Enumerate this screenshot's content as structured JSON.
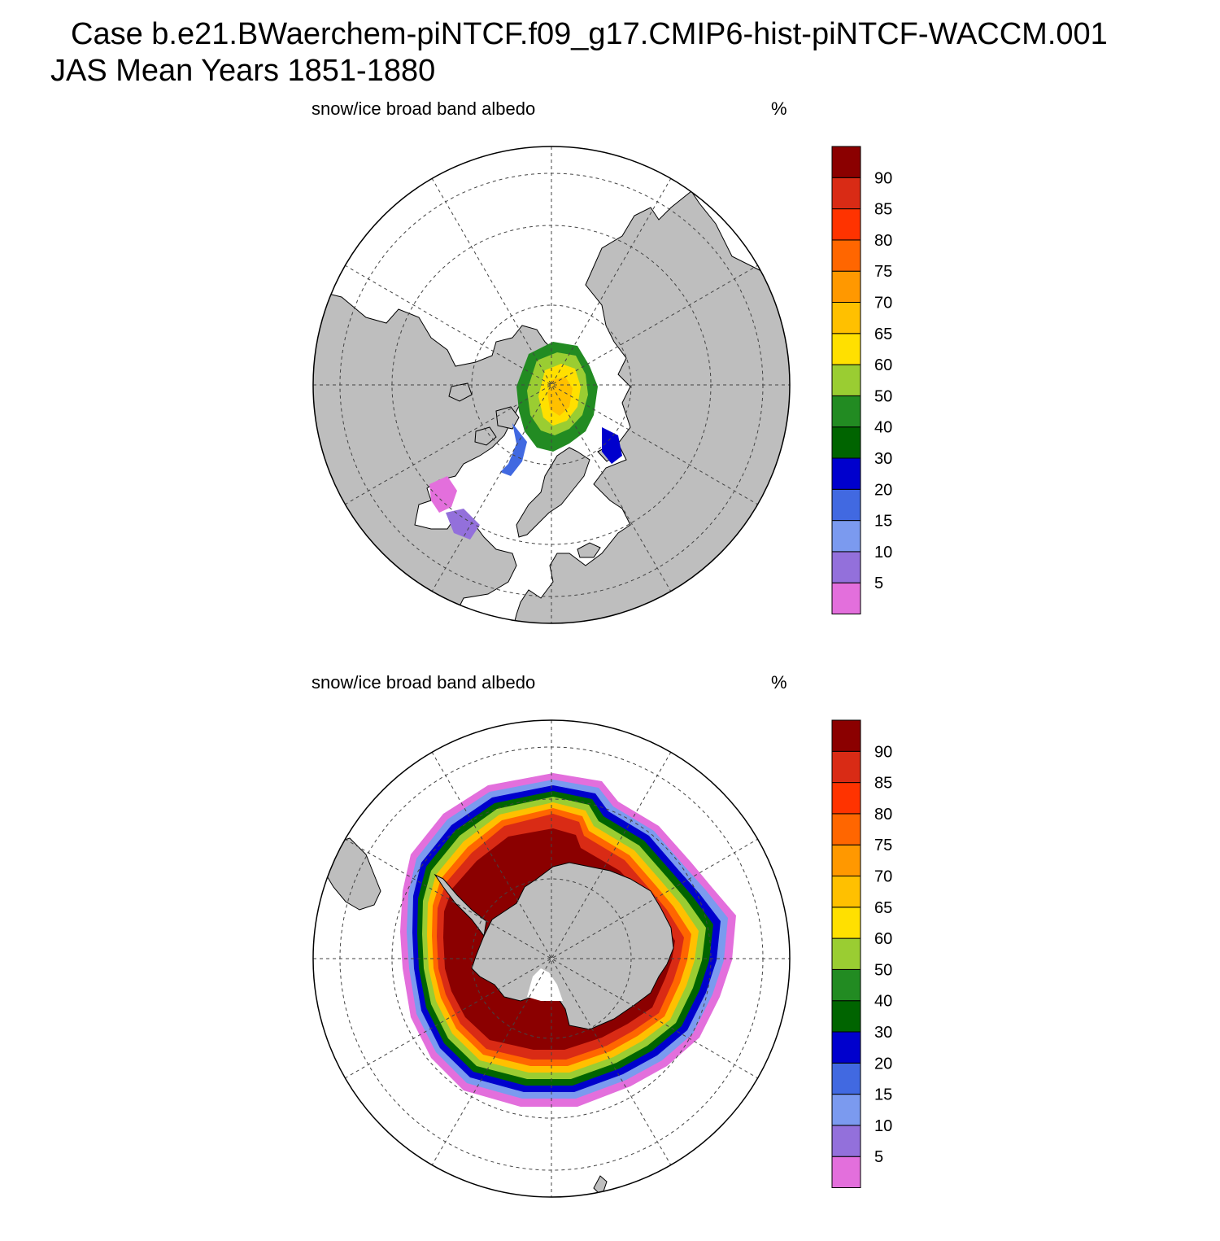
{
  "header": {
    "case_title": "Case b.e21.BWaerchem-piNTCF.f09_g17.CMIP6-hist-piNTCF-WACCM.001",
    "period_title": "JAS Mean   Years 1851-1880"
  },
  "colors": {
    "land": "#bebebe",
    "ocean": "#ffffff",
    "coast": "#000000",
    "grid": "#444444"
  },
  "colorbar": {
    "bins": [
      {
        "label": "5",
        "color": "#e36fdc"
      },
      {
        "label": "10",
        "color": "#9370db"
      },
      {
        "label": "15",
        "color": "#7b9aef"
      },
      {
        "label": "20",
        "color": "#4169e1"
      },
      {
        "label": "30",
        "color": "#0000cd"
      },
      {
        "label": "40",
        "color": "#006400"
      },
      {
        "label": "50",
        "color": "#228b22"
      },
      {
        "label": "60",
        "color": "#9acd32"
      },
      {
        "label": "65",
        "color": "#ffe000"
      },
      {
        "label": "70",
        "color": "#ffc000"
      },
      {
        "label": "75",
        "color": "#ff9800"
      },
      {
        "label": "80",
        "color": "#ff6600"
      },
      {
        "label": "85",
        "color": "#ff3300"
      },
      {
        "label": "90",
        "color": "#d92b15"
      },
      {
        "label": "",
        "color": "#8b0000"
      }
    ]
  },
  "panels": [
    {
      "id": "north",
      "variable_label": "snow/ice broad band albedo",
      "units_label": "%",
      "hemisphere": "Northern Hemisphere (Arctic)"
    },
    {
      "id": "south",
      "variable_label": "snow/ice broad band albedo",
      "units_label": "%",
      "hemisphere": "Southern Hemisphere (Antarctic)"
    }
  ]
}
